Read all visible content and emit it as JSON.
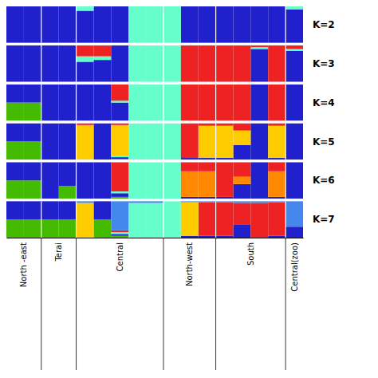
{
  "chart_data": [
    {
      "type": "bar",
      "stacked": true,
      "title": "K=2",
      "grid": false,
      "tick_labels": false,
      "categories": [
        null,
        null,
        null,
        null,
        null,
        null,
        null,
        null,
        null,
        null,
        null,
        null,
        null,
        null,
        null,
        null,
        null
      ],
      "ylim": [
        0,
        1
      ],
      "series": [
        {
          "color": "#2020CC",
          "values": [
            1.0,
            1.0,
            1.0,
            1.0,
            0.88,
            1.0,
            1.0,
            0.0,
            0.0,
            0.0,
            1.0,
            1.0,
            1.0,
            1.0,
            1.0,
            1.0,
            0.92
          ]
        },
        {
          "color": "#66FFCC",
          "values": [
            0.0,
            0.0,
            0.0,
            0.0,
            0.12,
            0.0,
            0.0,
            1.0,
            1.0,
            1.0,
            0.0,
            0.0,
            0.0,
            0.0,
            0.0,
            0.0,
            0.08
          ]
        }
      ]
    },
    {
      "type": "bar",
      "stacked": true,
      "title": "K=3",
      "grid": false,
      "tick_labels": false,
      "categories": [
        null,
        null,
        null,
        null,
        null,
        null,
        null,
        null,
        null,
        null,
        null,
        null,
        null,
        null,
        null,
        null,
        null
      ],
      "ylim": [
        0,
        1
      ],
      "series": [
        {
          "color": "#2020CC",
          "values": [
            1.0,
            1.0,
            1.0,
            1.0,
            0.55,
            0.6,
            1.0,
            0.0,
            0.0,
            0.0,
            0.0,
            0.0,
            0.0,
            0.0,
            0.9,
            0.0,
            0.85
          ]
        },
        {
          "color": "#66FFCC",
          "values": [
            0.0,
            0.0,
            0.0,
            0.0,
            0.15,
            0.1,
            0.0,
            1.0,
            1.0,
            1.0,
            0.0,
            0.0,
            0.0,
            0.0,
            0.05,
            0.0,
            0.05
          ]
        },
        {
          "color": "#EE2222",
          "values": [
            0.0,
            0.0,
            0.0,
            0.0,
            0.3,
            0.3,
            0.0,
            0.0,
            0.0,
            0.0,
            1.0,
            1.0,
            1.0,
            1.0,
            0.05,
            1.0,
            0.1
          ]
        }
      ]
    },
    {
      "type": "bar",
      "stacked": true,
      "title": "K=4",
      "grid": false,
      "tick_labels": false,
      "categories": [
        null,
        null,
        null,
        null,
        null,
        null,
        null,
        null,
        null,
        null,
        null,
        null,
        null,
        null,
        null,
        null,
        null
      ],
      "ylim": [
        0,
        1
      ],
      "series": [
        {
          "color": "#44BB00",
          "values": [
            0.5,
            0.5,
            0.0,
            0.0,
            0.0,
            0.0,
            0.0,
            0.0,
            0.0,
            0.0,
            0.0,
            0.0,
            0.0,
            0.0,
            0.0,
            0.0,
            0.0
          ]
        },
        {
          "color": "#2020CC",
          "values": [
            0.5,
            0.5,
            1.0,
            1.0,
            1.0,
            1.0,
            0.5,
            0.0,
            0.0,
            0.0,
            0.0,
            0.0,
            0.0,
            0.0,
            1.0,
            0.0,
            1.0
          ]
        },
        {
          "color": "#66FFCC",
          "values": [
            0.0,
            0.0,
            0.0,
            0.0,
            0.0,
            0.0,
            0.05,
            1.0,
            1.0,
            1.0,
            0.0,
            0.0,
            0.0,
            0.0,
            0.0,
            0.0,
            0.0
          ]
        },
        {
          "color": "#EE2222",
          "values": [
            0.0,
            0.0,
            0.0,
            0.0,
            0.0,
            0.0,
            0.45,
            0.0,
            0.0,
            0.0,
            1.0,
            1.0,
            1.0,
            1.0,
            0.0,
            1.0,
            0.0
          ]
        }
      ]
    },
    {
      "type": "bar",
      "stacked": true,
      "title": "K=5",
      "grid": false,
      "tick_labels": false,
      "categories": [
        null,
        null,
        null,
        null,
        null,
        null,
        null,
        null,
        null,
        null,
        null,
        null,
        null,
        null,
        null,
        null,
        null
      ],
      "ylim": [
        0,
        1
      ],
      "series": [
        {
          "color": "#44BB00",
          "values": [
            0.5,
            0.5,
            0.0,
            0.0,
            0.0,
            0.0,
            0.02,
            0.0,
            0.0,
            0.0,
            0.0,
            0.0,
            0.0,
            0.0,
            0.0,
            0.0,
            0.0
          ]
        },
        {
          "color": "#2020CC",
          "values": [
            0.5,
            0.5,
            1.0,
            1.0,
            0.0,
            1.0,
            0.05,
            0.0,
            0.0,
            0.0,
            0.05,
            0.05,
            0.05,
            0.4,
            1.0,
            0.05,
            1.0
          ]
        },
        {
          "color": "#66FFCC",
          "values": [
            0.0,
            0.0,
            0.0,
            0.0,
            0.0,
            0.0,
            0.03,
            1.0,
            1.0,
            1.0,
            0.0,
            0.0,
            0.0,
            0.0,
            0.0,
            0.0,
            0.0
          ]
        },
        {
          "color": "#FFCC00",
          "values": [
            0.0,
            0.0,
            0.0,
            0.0,
            0.95,
            0.0,
            0.85,
            0.0,
            0.0,
            0.0,
            0.0,
            0.88,
            0.88,
            0.4,
            0.0,
            0.88,
            0.0
          ]
        },
        {
          "color": "#EE2222",
          "values": [
            0.0,
            0.0,
            0.0,
            0.0,
            0.05,
            0.0,
            0.05,
            0.0,
            0.0,
            0.0,
            0.95,
            0.07,
            0.07,
            0.2,
            0.0,
            0.07,
            0.0
          ]
        }
      ]
    },
    {
      "type": "bar",
      "stacked": true,
      "title": "K=6",
      "grid": false,
      "tick_labels": false,
      "categories": [
        null,
        null,
        null,
        null,
        null,
        null,
        null,
        null,
        null,
        null,
        null,
        null,
        null,
        null,
        null,
        null,
        null
      ],
      "ylim": [
        0,
        1
      ],
      "series": [
        {
          "color": "#44BB00",
          "values": [
            0.5,
            0.5,
            0.0,
            0.35,
            0.0,
            0.0,
            0.05,
            0.0,
            0.0,
            0.0,
            0.0,
            0.0,
            0.0,
            0.0,
            0.0,
            0.0,
            0.0
          ]
        },
        {
          "color": "#2020CC",
          "values": [
            0.5,
            0.5,
            1.0,
            0.65,
            1.0,
            1.0,
            0.1,
            0.0,
            0.0,
            0.0,
            0.05,
            0.05,
            0.05,
            0.4,
            1.0,
            0.05,
            1.0
          ]
        },
        {
          "color": "#66FFCC",
          "values": [
            0.0,
            0.0,
            0.0,
            0.0,
            0.0,
            0.0,
            0.05,
            1.0,
            1.0,
            1.0,
            0.0,
            0.0,
            0.0,
            0.0,
            0.0,
            0.0,
            0.0
          ]
        },
        {
          "color": "#FF8800",
          "values": [
            0.0,
            0.0,
            0.0,
            0.0,
            0.0,
            0.0,
            0.0,
            0.0,
            0.0,
            0.0,
            0.7,
            0.7,
            0.0,
            0.2,
            0.0,
            0.7,
            0.0
          ]
        },
        {
          "color": "#EE2222",
          "values": [
            0.0,
            0.0,
            0.0,
            0.0,
            0.0,
            0.0,
            0.8,
            0.0,
            0.0,
            0.0,
            0.25,
            0.25,
            0.95,
            0.4,
            0.0,
            0.25,
            0.0
          ]
        }
      ]
    },
    {
      "type": "bar",
      "stacked": true,
      "title": "K=7",
      "grid": false,
      "tick_labels": "x",
      "categories": [
        "North -east",
        null,
        "Terai",
        null,
        "Central",
        null,
        null,
        null,
        null,
        "North-west",
        null,
        null,
        "South",
        null,
        null,
        null,
        "Central(zoo)"
      ],
      "ylim": [
        0,
        1
      ],
      "series": [
        {
          "color": "#44BB00",
          "values": [
            0.5,
            0.5,
            0.5,
            0.5,
            0.0,
            0.5,
            0.05,
            0.0,
            0.0,
            0.0,
            0.0,
            0.0,
            0.0,
            0.0,
            0.0,
            0.0,
            0.0
          ]
        },
        {
          "color": "#2020CC",
          "values": [
            0.5,
            0.5,
            0.5,
            0.5,
            0.0,
            0.5,
            0.05,
            0.0,
            0.0,
            0.0,
            0.05,
            0.05,
            0.05,
            0.35,
            0.0,
            0.05,
            0.3
          ]
        },
        {
          "color": "#66FFCC",
          "values": [
            0.0,
            0.0,
            0.0,
            0.0,
            0.0,
            0.0,
            0.05,
            0.95,
            0.95,
            1.0,
            0.0,
            0.0,
            0.0,
            0.0,
            0.0,
            0.0,
            0.0
          ]
        },
        {
          "color": "#EE2222",
          "values": [
            0.0,
            0.0,
            0.0,
            0.0,
            0.0,
            0.0,
            0.05,
            0.0,
            0.0,
            0.0,
            0.0,
            0.92,
            0.92,
            0.6,
            0.95,
            0.92,
            0.0
          ]
        },
        {
          "color": "#FFCC00",
          "values": [
            0.0,
            0.0,
            0.0,
            0.0,
            0.95,
            0.0,
            0.0,
            0.0,
            0.0,
            0.0,
            0.92,
            0.0,
            0.0,
            0.0,
            0.0,
            0.0,
            0.0
          ]
        },
        {
          "color": "#FF8800",
          "values": [
            0.0,
            0.0,
            0.0,
            0.0,
            0.0,
            0.0,
            0.0,
            0.0,
            0.0,
            0.0,
            0.0,
            0.0,
            0.0,
            0.0,
            0.0,
            0.0,
            0.0
          ]
        },
        {
          "color": "#4488EE",
          "values": [
            0.0,
            0.0,
            0.0,
            0.0,
            0.05,
            0.0,
            0.8,
            0.05,
            0.05,
            0.0,
            0.03,
            0.03,
            0.03,
            0.05,
            0.05,
            0.03,
            0.7
          ]
        }
      ]
    }
  ]
}
